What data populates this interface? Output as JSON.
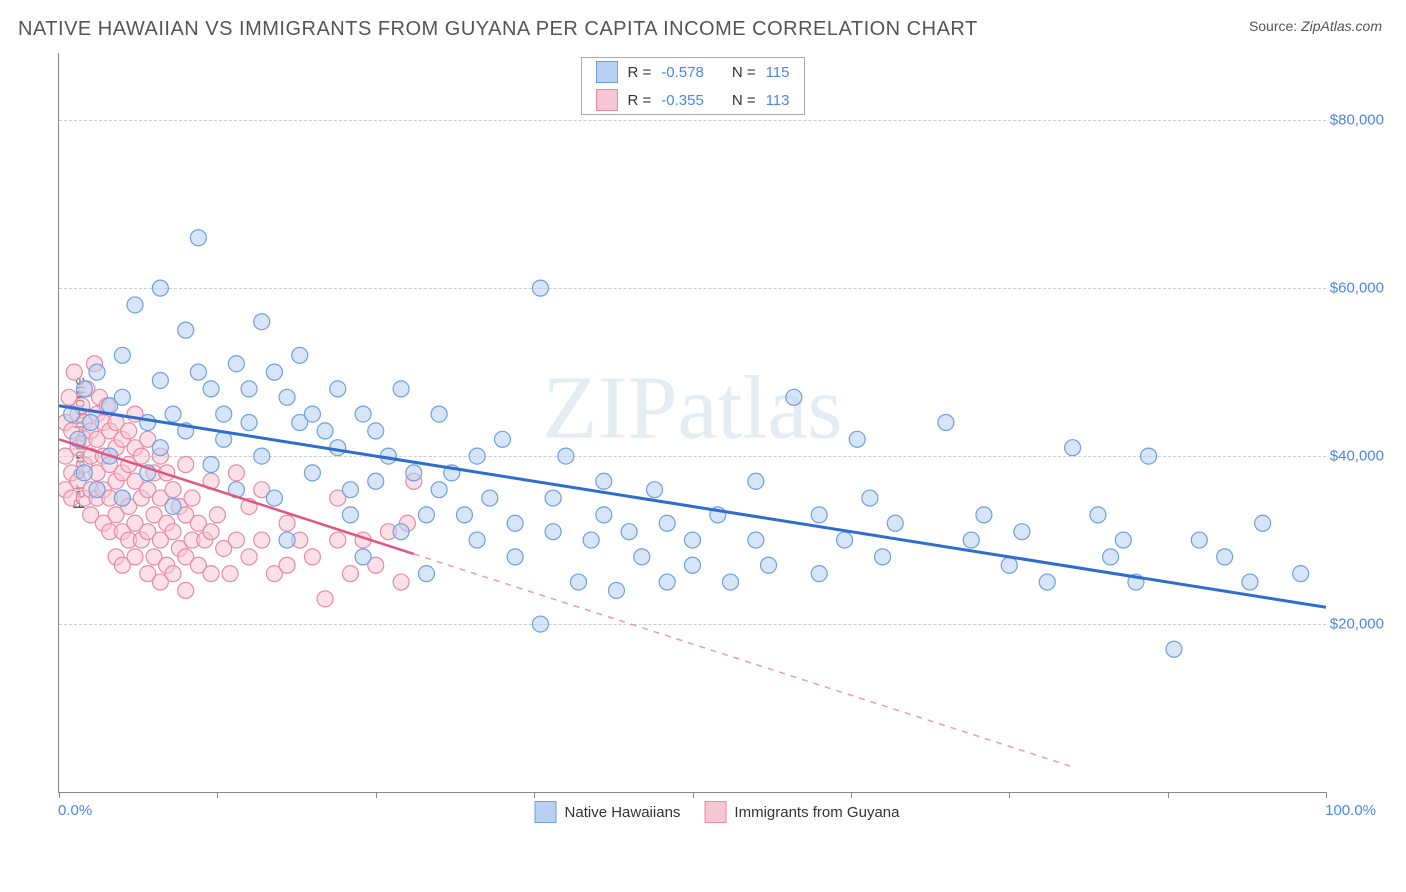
{
  "header": {
    "title": "NATIVE HAWAIIAN VS IMMIGRANTS FROM GUYANA PER CAPITA INCOME CORRELATION CHART",
    "source_prefix": "Source: ",
    "source_name": "ZipAtlas.com"
  },
  "chart": {
    "type": "scatter",
    "watermark": "ZIPatlas",
    "ylabel": "Per Capita Income",
    "xlim": [
      0,
      100
    ],
    "ylim": [
      0,
      88000
    ],
    "x_axis": {
      "min_label": "0.0%",
      "max_label": "100.0%",
      "tick_positions_pct": [
        0,
        12.5,
        25,
        37.5,
        50,
        62.5,
        75,
        87.5,
        100
      ]
    },
    "y_axis": {
      "gridlines": [
        20000,
        40000,
        60000,
        80000
      ],
      "ticks": [
        {
          "v": 20000,
          "label": "$20,000"
        },
        {
          "v": 40000,
          "label": "$40,000"
        },
        {
          "v": 60000,
          "label": "$60,000"
        },
        {
          "v": 80000,
          "label": "$80,000"
        }
      ]
    },
    "series": [
      {
        "name": "Native Hawaiians",
        "color_fill": "#b8d0f2",
        "color_stroke": "#6ea0e0",
        "line_color": "#2f6cd0",
        "r_label": "R =",
        "r_value": "-0.578",
        "n_label": "N =",
        "n_value": "115",
        "regression": {
          "x1": 0,
          "y1": 46000,
          "x2": 100,
          "y2": 22000
        },
        "regression_dash_from_x": null,
        "points": [
          [
            1,
            45000
          ],
          [
            1.5,
            42000
          ],
          [
            2,
            48000
          ],
          [
            2,
            38000
          ],
          [
            2.5,
            44000
          ],
          [
            3,
            50000
          ],
          [
            3,
            36000
          ],
          [
            4,
            46000
          ],
          [
            4,
            40000
          ],
          [
            5,
            47000
          ],
          [
            5,
            35000
          ],
          [
            5,
            52000
          ],
          [
            6,
            58000
          ],
          [
            7,
            44000
          ],
          [
            7,
            38000
          ],
          [
            8,
            60000
          ],
          [
            8,
            49000
          ],
          [
            8,
            41000
          ],
          [
            9,
            45000
          ],
          [
            9,
            34000
          ],
          [
            10,
            55000
          ],
          [
            10,
            43000
          ],
          [
            11,
            50000
          ],
          [
            11,
            66000
          ],
          [
            12,
            48000
          ],
          [
            12,
            39000
          ],
          [
            13,
            45000
          ],
          [
            13,
            42000
          ],
          [
            14,
            51000
          ],
          [
            14,
            36000
          ],
          [
            15,
            48000
          ],
          [
            15,
            44000
          ],
          [
            16,
            56000
          ],
          [
            16,
            40000
          ],
          [
            17,
            50000
          ],
          [
            17,
            35000
          ],
          [
            18,
            47000
          ],
          [
            18,
            30000
          ],
          [
            19,
            52000
          ],
          [
            19,
            44000
          ],
          [
            20,
            45000
          ],
          [
            20,
            38000
          ],
          [
            21,
            43000
          ],
          [
            22,
            48000
          ],
          [
            22,
            41000
          ],
          [
            23,
            36000
          ],
          [
            23,
            33000
          ],
          [
            24,
            45000
          ],
          [
            24,
            28000
          ],
          [
            25,
            43000
          ],
          [
            25,
            37000
          ],
          [
            26,
            40000
          ],
          [
            27,
            48000
          ],
          [
            27,
            31000
          ],
          [
            28,
            38000
          ],
          [
            29,
            33000
          ],
          [
            29,
            26000
          ],
          [
            30,
            45000
          ],
          [
            30,
            36000
          ],
          [
            31,
            38000
          ],
          [
            32,
            33000
          ],
          [
            33,
            40000
          ],
          [
            33,
            30000
          ],
          [
            34,
            35000
          ],
          [
            35,
            42000
          ],
          [
            36,
            28000
          ],
          [
            36,
            32000
          ],
          [
            38,
            60000
          ],
          [
            38,
            20000
          ],
          [
            39,
            35000
          ],
          [
            39,
            31000
          ],
          [
            40,
            40000
          ],
          [
            41,
            25000
          ],
          [
            42,
            30000
          ],
          [
            43,
            37000
          ],
          [
            43,
            33000
          ],
          [
            44,
            24000
          ],
          [
            45,
            31000
          ],
          [
            46,
            28000
          ],
          [
            47,
            36000
          ],
          [
            48,
            25000
          ],
          [
            48,
            32000
          ],
          [
            50,
            30000
          ],
          [
            50,
            27000
          ],
          [
            52,
            33000
          ],
          [
            53,
            25000
          ],
          [
            55,
            30000
          ],
          [
            55,
            37000
          ],
          [
            56,
            27000
          ],
          [
            58,
            47000
          ],
          [
            60,
            33000
          ],
          [
            60,
            26000
          ],
          [
            62,
            30000
          ],
          [
            63,
            42000
          ],
          [
            64,
            35000
          ],
          [
            65,
            28000
          ],
          [
            66,
            32000
          ],
          [
            70,
            44000
          ],
          [
            72,
            30000
          ],
          [
            73,
            33000
          ],
          [
            75,
            27000
          ],
          [
            76,
            31000
          ],
          [
            78,
            25000
          ],
          [
            80,
            41000
          ],
          [
            82,
            33000
          ],
          [
            83,
            28000
          ],
          [
            84,
            30000
          ],
          [
            85,
            25000
          ],
          [
            86,
            40000
          ],
          [
            88,
            17000
          ],
          [
            90,
            30000
          ],
          [
            92,
            28000
          ],
          [
            94,
            25000
          ],
          [
            95,
            32000
          ],
          [
            98,
            26000
          ]
        ]
      },
      {
        "name": "Immigrants from Guyana",
        "color_fill": "#f7c6d4",
        "color_stroke": "#e88aa5",
        "line_color": "#e25580",
        "r_label": "R =",
        "r_value": "-0.355",
        "n_label": "N =",
        "n_value": "113",
        "regression": {
          "x1": 0,
          "y1": 42000,
          "x2": 80,
          "y2": 3000
        },
        "regression_dash_from_x": 28,
        "points": [
          [
            0.5,
            44000
          ],
          [
            0.5,
            40000
          ],
          [
            0.5,
            36000
          ],
          [
            0.8,
            47000
          ],
          [
            1,
            43000
          ],
          [
            1,
            38000
          ],
          [
            1,
            35000
          ],
          [
            1.2,
            50000
          ],
          [
            1.5,
            45000
          ],
          [
            1.5,
            41000
          ],
          [
            1.5,
            37000
          ],
          [
            1.8,
            46000
          ],
          [
            2,
            44000
          ],
          [
            2,
            42000
          ],
          [
            2,
            39000
          ],
          [
            2,
            35000
          ],
          [
            2.2,
            48000
          ],
          [
            2.5,
            43000
          ],
          [
            2.5,
            40000
          ],
          [
            2.5,
            36000
          ],
          [
            2.5,
            33000
          ],
          [
            2.8,
            51000
          ],
          [
            3,
            45000
          ],
          [
            3,
            42000
          ],
          [
            3,
            38000
          ],
          [
            3,
            35000
          ],
          [
            3.2,
            47000
          ],
          [
            3.5,
            44000
          ],
          [
            3.5,
            40000
          ],
          [
            3.5,
            36000
          ],
          [
            3.5,
            32000
          ],
          [
            3.8,
            46000
          ],
          [
            4,
            43000
          ],
          [
            4,
            39000
          ],
          [
            4,
            35000
          ],
          [
            4,
            31000
          ],
          [
            4.5,
            44000
          ],
          [
            4.5,
            41000
          ],
          [
            4.5,
            37000
          ],
          [
            4.5,
            33000
          ],
          [
            4.5,
            28000
          ],
          [
            5,
            42000
          ],
          [
            5,
            38000
          ],
          [
            5,
            35000
          ],
          [
            5,
            31000
          ],
          [
            5,
            27000
          ],
          [
            5.5,
            43000
          ],
          [
            5.5,
            39000
          ],
          [
            5.5,
            34000
          ],
          [
            5.5,
            30000
          ],
          [
            6,
            45000
          ],
          [
            6,
            41000
          ],
          [
            6,
            37000
          ],
          [
            6,
            32000
          ],
          [
            6,
            28000
          ],
          [
            6.5,
            40000
          ],
          [
            6.5,
            35000
          ],
          [
            6.5,
            30000
          ],
          [
            7,
            42000
          ],
          [
            7,
            36000
          ],
          [
            7,
            31000
          ],
          [
            7,
            26000
          ],
          [
            7.5,
            38000
          ],
          [
            7.5,
            33000
          ],
          [
            7.5,
            28000
          ],
          [
            8,
            40000
          ],
          [
            8,
            35000
          ],
          [
            8,
            30000
          ],
          [
            8,
            25000
          ],
          [
            8.5,
            38000
          ],
          [
            8.5,
            32000
          ],
          [
            8.5,
            27000
          ],
          [
            9,
            36000
          ],
          [
            9,
            31000
          ],
          [
            9,
            26000
          ],
          [
            9.5,
            34000
          ],
          [
            9.5,
            29000
          ],
          [
            10,
            39000
          ],
          [
            10,
            33000
          ],
          [
            10,
            28000
          ],
          [
            10,
            24000
          ],
          [
            10.5,
            35000
          ],
          [
            10.5,
            30000
          ],
          [
            11,
            32000
          ],
          [
            11,
            27000
          ],
          [
            11.5,
            30000
          ],
          [
            12,
            37000
          ],
          [
            12,
            31000
          ],
          [
            12,
            26000
          ],
          [
            12.5,
            33000
          ],
          [
            13,
            29000
          ],
          [
            13.5,
            26000
          ],
          [
            14,
            38000
          ],
          [
            14,
            30000
          ],
          [
            15,
            34000
          ],
          [
            15,
            28000
          ],
          [
            16,
            36000
          ],
          [
            16,
            30000
          ],
          [
            17,
            26000
          ],
          [
            18,
            32000
          ],
          [
            18,
            27000
          ],
          [
            19,
            30000
          ],
          [
            20,
            28000
          ],
          [
            21,
            23000
          ],
          [
            22,
            30000
          ],
          [
            22,
            35000
          ],
          [
            23,
            26000
          ],
          [
            24,
            30000
          ],
          [
            25,
            27000
          ],
          [
            26,
            31000
          ],
          [
            27,
            25000
          ],
          [
            27.5,
            32000
          ],
          [
            28,
            37000
          ]
        ]
      }
    ],
    "legend_bottom": [
      {
        "swatch_fill": "#b8d0f2",
        "swatch_stroke": "#6ea0e0",
        "label": "Native Hawaiians"
      },
      {
        "swatch_fill": "#f7c6d4",
        "swatch_stroke": "#e88aa5",
        "label": "Immigrants from Guyana"
      }
    ],
    "marker_radius": 8,
    "marker_opacity": 0.55,
    "grid_color": "#cccccc",
    "background_color": "#ffffff"
  }
}
